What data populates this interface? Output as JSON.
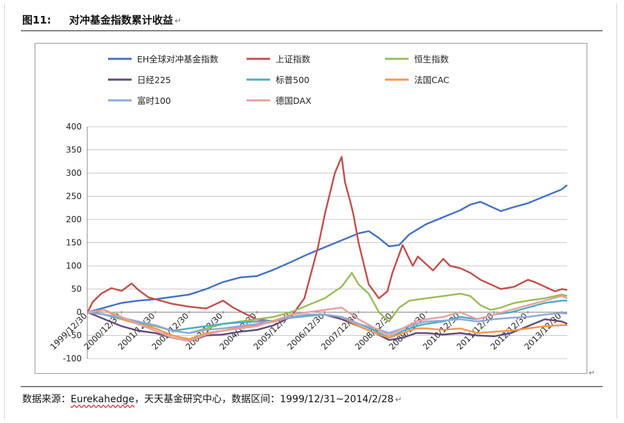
{
  "header": {
    "figure_number": "图11:",
    "title": "对冲基金指数累计收益"
  },
  "source_note": {
    "prefix": "数据来源：",
    "provider": "Eurekahedge",
    "suffix": "，天天基金研究中心，数据区间：1999/12/31~2014/2/28"
  },
  "chart_data": {
    "type": "line",
    "title": "",
    "xlabel": "",
    "ylabel": "",
    "ylim": [
      -100,
      400
    ],
    "yticks": [
      -100,
      -50,
      0,
      50,
      100,
      150,
      200,
      250,
      300,
      350,
      400
    ],
    "xlim": [
      1999.99,
      2014.16
    ],
    "xticks": [
      "1999/12/30",
      "2000/12/30",
      "2001/12/30",
      "2002/12/30",
      "2003/12/30",
      "2004/12/30",
      "2005/12/30",
      "2006/12/30",
      "2007/12/30",
      "2008/12/30",
      "2009/12/30",
      "2010/12/30",
      "2011/12/30",
      "2012/12/30",
      "2013/12/30"
    ],
    "grid": true,
    "legend_position": "top",
    "series": [
      {
        "name": "EH全球对冲基金指数",
        "color": "#4472C4",
        "x": [
          2000.0,
          2000.5,
          2001.0,
          2001.5,
          2002.0,
          2002.5,
          2003.0,
          2003.5,
          2004.0,
          2004.5,
          2005.0,
          2005.5,
          2006.0,
          2006.5,
          2007.0,
          2007.5,
          2008.0,
          2008.3,
          2008.6,
          2008.9,
          2009.2,
          2009.5,
          2010.0,
          2010.5,
          2011.0,
          2011.3,
          2011.6,
          2011.9,
          2012.2,
          2012.5,
          2013.0,
          2013.5,
          2014.0,
          2014.16
        ],
        "y": [
          0,
          10,
          20,
          25,
          28,
          33,
          38,
          50,
          65,
          75,
          78,
          92,
          108,
          125,
          140,
          155,
          170,
          175,
          160,
          142,
          145,
          168,
          190,
          205,
          220,
          232,
          238,
          228,
          218,
          225,
          235,
          250,
          265,
          274
        ]
      },
      {
        "name": "上证指数",
        "color": "#C0504D",
        "x": [
          2000.0,
          2000.15,
          2000.4,
          2000.7,
          2001.0,
          2001.3,
          2001.5,
          2001.8,
          2002.0,
          2002.5,
          2003.0,
          2003.5,
          2004.0,
          2004.3,
          2004.7,
          2005.0,
          2005.5,
          2006.0,
          2006.4,
          2006.8,
          2007.0,
          2007.3,
          2007.5,
          2007.6,
          2007.75,
          2007.85,
          2008.0,
          2008.3,
          2008.6,
          2008.85,
          2009.0,
          2009.3,
          2009.6,
          2009.75,
          2009.9,
          2010.2,
          2010.5,
          2010.7,
          2011.0,
          2011.3,
          2011.6,
          2011.9,
          2012.2,
          2012.6,
          2013.0,
          2013.2,
          2013.5,
          2013.8,
          2014.0,
          2014.16
        ],
        "y": [
          0,
          22,
          40,
          52,
          46,
          62,
          48,
          32,
          28,
          18,
          12,
          8,
          25,
          10,
          -5,
          -15,
          -20,
          -10,
          30,
          140,
          210,
          300,
          335,
          280,
          240,
          210,
          150,
          60,
          30,
          45,
          85,
          145,
          100,
          120,
          110,
          90,
          115,
          100,
          95,
          85,
          70,
          60,
          50,
          55,
          70,
          65,
          55,
          45,
          50,
          48
        ]
      },
      {
        "name": "恒生指数",
        "color": "#9BBB59",
        "x": [
          2000.0,
          2000.5,
          2001.0,
          2001.5,
          2002.0,
          2002.5,
          2003.0,
          2003.5,
          2004.0,
          2004.5,
          2005.0,
          2005.5,
          2006.0,
          2006.5,
          2007.0,
          2007.5,
          2007.8,
          2008.0,
          2008.3,
          2008.6,
          2008.9,
          2009.2,
          2009.5,
          2010.0,
          2010.5,
          2011.0,
          2011.3,
          2011.6,
          2011.9,
          2012.2,
          2012.6,
          2013.0,
          2013.5,
          2014.0,
          2014.16
        ],
        "y": [
          0,
          -5,
          -15,
          -25,
          -30,
          -40,
          -45,
          -35,
          -25,
          -20,
          -15,
          -10,
          0,
          15,
          30,
          55,
          85,
          60,
          40,
          0,
          -20,
          10,
          25,
          30,
          35,
          40,
          35,
          15,
          5,
          10,
          20,
          25,
          30,
          38,
          35
        ]
      },
      {
        "name": "日经225",
        "color": "#604A7B",
        "x": [
          2000.0,
          2000.5,
          2001.0,
          2001.5,
          2002.0,
          2002.5,
          2003.0,
          2003.5,
          2004.0,
          2004.5,
          2005.0,
          2005.5,
          2006.0,
          2006.5,
          2007.0,
          2007.5,
          2008.0,
          2008.5,
          2008.9,
          2009.3,
          2009.7,
          2010.0,
          2010.5,
          2011.0,
          2011.5,
          2012.0,
          2012.5,
          2013.0,
          2013.5,
          2014.0,
          2014.16
        ],
        "y": [
          0,
          -15,
          -30,
          -40,
          -45,
          -55,
          -62,
          -50,
          -48,
          -42,
          -38,
          -28,
          -10,
          -5,
          -5,
          -15,
          -30,
          -45,
          -60,
          -55,
          -45,
          -45,
          -48,
          -45,
          -50,
          -52,
          -45,
          -30,
          -15,
          -20,
          -25
        ]
      },
      {
        "name": "标普500",
        "color": "#4BACC6",
        "x": [
          2000.0,
          2000.5,
          2001.0,
          2001.5,
          2002.0,
          2002.5,
          2003.0,
          2003.5,
          2004.0,
          2004.5,
          2005.0,
          2005.5,
          2006.0,
          2006.5,
          2007.0,
          2007.5,
          2008.0,
          2008.5,
          2008.9,
          2009.3,
          2009.7,
          2010.0,
          2010.5,
          2011.0,
          2011.5,
          2012.0,
          2012.5,
          2013.0,
          2013.5,
          2014.0,
          2014.16
        ],
        "y": [
          0,
          -5,
          -15,
          -22,
          -28,
          -40,
          -35,
          -30,
          -25,
          -22,
          -20,
          -18,
          -12,
          -8,
          -5,
          -10,
          -25,
          -40,
          -55,
          -40,
          -30,
          -25,
          -20,
          -10,
          -15,
          -5,
          0,
          10,
          20,
          25,
          25
        ]
      },
      {
        "name": "法国CAC",
        "color": "#F79646",
        "x": [
          2000.0,
          2000.5,
          2001.0,
          2001.5,
          2002.0,
          2002.5,
          2003.0,
          2003.5,
          2004.0,
          2004.5,
          2005.0,
          2005.5,
          2006.0,
          2006.5,
          2007.0,
          2007.5,
          2008.0,
          2008.5,
          2008.9,
          2009.3,
          2009.7,
          2010.0,
          2010.5,
          2011.0,
          2011.5,
          2012.0,
          2012.5,
          2013.0,
          2013.5,
          2014.0,
          2014.16
        ],
        "y": [
          0,
          5,
          -15,
          -25,
          -35,
          -50,
          -58,
          -45,
          -40,
          -32,
          -28,
          -20,
          -10,
          -5,
          -5,
          -10,
          -30,
          -45,
          -55,
          -45,
          -35,
          -35,
          -38,
          -35,
          -45,
          -42,
          -40,
          -35,
          -30,
          -28,
          -28
        ]
      },
      {
        "name": "富时100",
        "color": "#8EA9DB",
        "x": [
          2000.0,
          2000.5,
          2001.0,
          2001.5,
          2002.0,
          2002.5,
          2003.0,
          2003.5,
          2004.0,
          2004.5,
          2005.0,
          2005.5,
          2006.0,
          2006.5,
          2007.0,
          2007.5,
          2008.0,
          2008.5,
          2008.9,
          2009.3,
          2009.7,
          2010.0,
          2010.5,
          2011.0,
          2011.5,
          2012.0,
          2012.5,
          2013.0,
          2013.5,
          2014.0,
          2014.16
        ],
        "y": [
          0,
          -5,
          -12,
          -20,
          -28,
          -40,
          -45,
          -38,
          -35,
          -30,
          -25,
          -18,
          -10,
          -5,
          -5,
          -10,
          -25,
          -35,
          -45,
          -35,
          -25,
          -20,
          -18,
          -15,
          -20,
          -15,
          -12,
          -10,
          -5,
          -2,
          -3
        ]
      },
      {
        "name": "德国DAX",
        "color": "#E6A0A0",
        "x": [
          2000.0,
          2000.5,
          2001.0,
          2001.5,
          2002.0,
          2002.5,
          2003.0,
          2003.5,
          2004.0,
          2004.5,
          2005.0,
          2005.5,
          2006.0,
          2006.5,
          2007.0,
          2007.5,
          2008.0,
          2008.5,
          2008.9,
          2009.3,
          2009.7,
          2010.0,
          2010.5,
          2011.0,
          2011.5,
          2012.0,
          2012.5,
          2013.0,
          2013.5,
          2014.0,
          2014.16
        ],
        "y": [
          0,
          5,
          -10,
          -25,
          -40,
          -55,
          -62,
          -48,
          -40,
          -35,
          -30,
          -18,
          -5,
          0,
          5,
          10,
          -15,
          -35,
          -50,
          -35,
          -20,
          -15,
          -10,
          0,
          -15,
          -5,
          5,
          15,
          25,
          35,
          30
        ]
      }
    ]
  }
}
